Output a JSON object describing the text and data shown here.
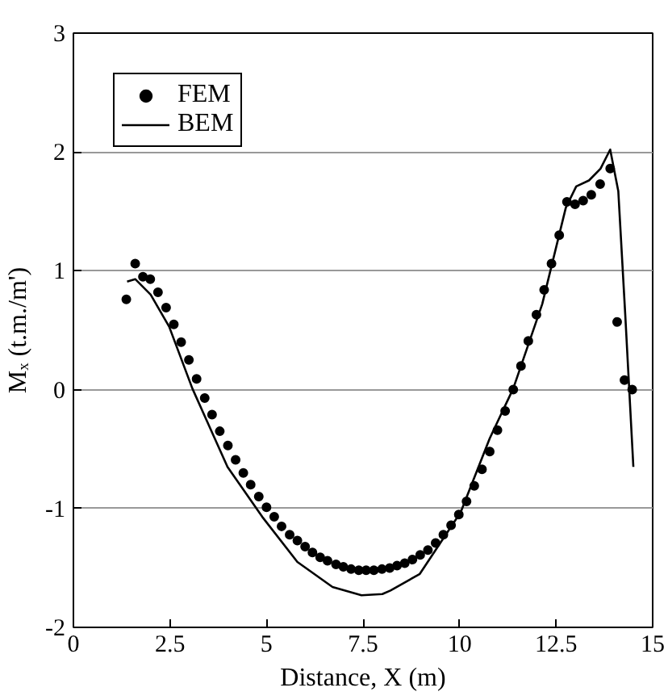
{
  "chart_data": {
    "type": "line",
    "xlabel": "Distance, X (m)",
    "ylabel": "Mₓ (t.m./m')",
    "xlim": [
      0,
      15
    ],
    "xticks": [
      0,
      2.5,
      5,
      7.5,
      10,
      12.5,
      15
    ],
    "ylim": [
      -2,
      3
    ],
    "yticks": [
      -2,
      -1,
      0,
      1,
      2,
      3
    ],
    "grid": "y",
    "legend": "top left",
    "series": [
      {
        "name": "FEM",
        "type": "scatter",
        "marker": "circle",
        "color": "#000000",
        "x": [
          1.37,
          1.6,
          1.8,
          1.99,
          2.19,
          2.4,
          2.6,
          2.79,
          2.99,
          3.19,
          3.4,
          3.59,
          3.79,
          4.0,
          4.2,
          4.4,
          4.59,
          4.8,
          5.0,
          5.2,
          5.39,
          5.6,
          5.8,
          6.0,
          6.19,
          6.39,
          6.58,
          6.8,
          6.99,
          7.19,
          7.39,
          7.58,
          7.78,
          7.99,
          8.19,
          8.38,
          8.58,
          8.78,
          8.98,
          9.18,
          9.38,
          9.58,
          9.78,
          9.98,
          10.18,
          10.38,
          10.58,
          10.78,
          10.98,
          11.18,
          11.39,
          11.59,
          11.78,
          11.99,
          12.19,
          12.38,
          12.58,
          12.78,
          12.99,
          13.2,
          13.41,
          13.64,
          13.9,
          14.08,
          14.27,
          14.47
        ],
        "values": [
          0.76,
          1.06,
          0.95,
          0.93,
          0.82,
          0.69,
          0.55,
          0.4,
          0.25,
          0.09,
          -0.07,
          -0.21,
          -0.35,
          -0.47,
          -0.59,
          -0.7,
          -0.8,
          -0.9,
          -0.99,
          -1.07,
          -1.15,
          -1.22,
          -1.27,
          -1.32,
          -1.37,
          -1.41,
          -1.44,
          -1.47,
          -1.49,
          -1.51,
          -1.52,
          -1.52,
          -1.52,
          -1.51,
          -1.5,
          -1.48,
          -1.46,
          -1.43,
          -1.39,
          -1.35,
          -1.29,
          -1.22,
          -1.14,
          -1.05,
          -0.94,
          -0.81,
          -0.67,
          -0.52,
          -0.34,
          -0.18,
          0.0,
          0.2,
          0.41,
          0.63,
          0.84,
          1.06,
          1.3,
          1.58,
          1.56,
          1.59,
          1.64,
          1.73,
          1.86,
          0.57,
          0.08,
          0.0
        ]
      },
      {
        "name": "BEM",
        "line_style": "solid",
        "color": "#000000",
        "x": [
          1.39,
          1.6,
          2.0,
          2.48,
          3.08,
          3.99,
          4.89,
          5.8,
          6.71,
          7.46,
          8.0,
          8.21,
          8.97,
          10.03,
          10.78,
          11.39,
          12.14,
          12.75,
          13.02,
          13.35,
          13.65,
          13.9,
          14.11,
          14.29,
          14.5
        ],
        "values": [
          0.91,
          0.93,
          0.8,
          0.53,
          0.01,
          -0.65,
          -1.07,
          -1.45,
          -1.66,
          -1.73,
          -1.72,
          -1.69,
          -1.55,
          -1.03,
          -0.41,
          0.01,
          0.72,
          1.53,
          1.71,
          1.76,
          1.86,
          2.02,
          1.67,
          0.63,
          -0.65
        ]
      }
    ]
  }
}
